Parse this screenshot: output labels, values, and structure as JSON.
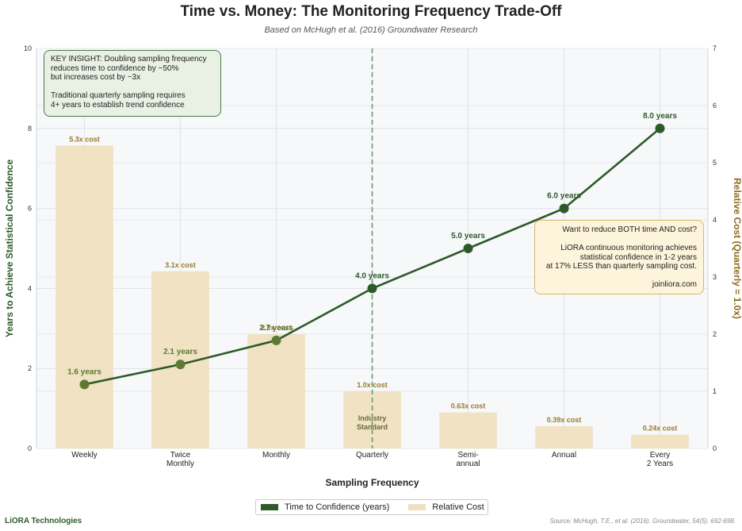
{
  "page": {
    "title": "Time vs. Money: The Monitoring Frequency Trade-Off",
    "subtitle": "Based on McHugh et al. (2016) Groundwater Research",
    "footer_brand": "LiORA Technologies",
    "footer_source": "Source: McHugh, T.E., et al. (2016). Groundwater, 54(5), 692-698."
  },
  "insight_box": {
    "lines": [
      "KEY INSIGHT: Doubling sampling frequency",
      "reduces time to confidence by ~50%",
      "but increases cost by ~3x",
      "",
      "Traditional quarterly sampling requires",
      "4+ years to establish trend confidence"
    ]
  },
  "cta_box": {
    "lines": [
      "Want to reduce BOTH time AND cost?",
      "",
      "LiORA continuous monitoring achieves",
      "statistical confidence in 1-2 years",
      "at 17% LESS than quarterly sampling cost.",
      "",
      "joinliora.com"
    ]
  },
  "chart_data": {
    "type": "bar",
    "categories": [
      "Weekly",
      "Twice\nMonthly",
      "Monthly",
      "Quarterly",
      "Semi-\nannual",
      "Annual",
      "Every\n2 Years"
    ],
    "xlabel": "Sampling Frequency",
    "ylabel": "Years to Achieve Statistical Confidence",
    "y2label": "Relative Cost (Quarterly = 1.0x)",
    "ylim": [
      0,
      10
    ],
    "y2lim": [
      0,
      7
    ],
    "yticks": [
      0,
      2,
      4,
      6,
      8,
      10
    ],
    "y2ticks": [
      0,
      1,
      2,
      3,
      4,
      5,
      6,
      7
    ],
    "grid": true,
    "legend_position": "bottom-center",
    "series": [
      {
        "name": "Time to Confidence (years)",
        "type": "line",
        "axis": "left",
        "color": "#2d5a2a",
        "values": [
          1.6,
          2.1,
          2.7,
          4.0,
          5.0,
          6.0,
          8.0
        ],
        "labels": [
          "1.6 years",
          "2.1 years",
          "2.7 years",
          "4.0 years",
          "5.0 years",
          "6.0 years",
          "8.0 years"
        ]
      },
      {
        "name": "Relative Cost",
        "type": "bar",
        "axis": "right",
        "color": "#efe0c0",
        "values": [
          5.3,
          3.1,
          2.0,
          1.0,
          0.63,
          0.39,
          0.24
        ],
        "labels": [
          "5.3x cost",
          "3.1x cost",
          "2.0x cost",
          "1.0x cost",
          "0.63x cost",
          "0.39x cost",
          "0.24x cost"
        ]
      }
    ],
    "annotations": [
      {
        "category": "Quarterly",
        "text": "Industry\nStandard"
      }
    ],
    "reference_line": {
      "category": "Quarterly",
      "style": "dashed",
      "color": "#6a9a66"
    }
  }
}
